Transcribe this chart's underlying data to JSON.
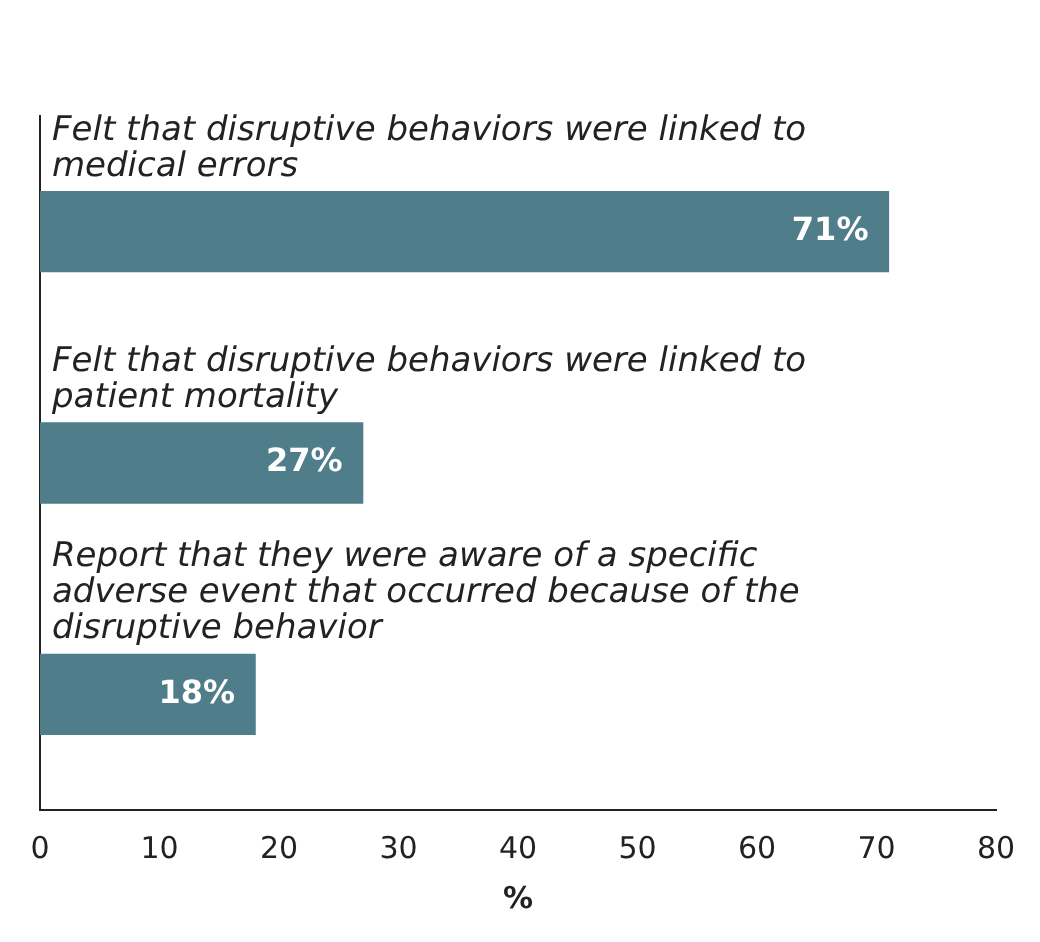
{
  "chart_data": {
    "type": "bar",
    "orientation": "horizontal",
    "categories": [
      "Felt that disruptive behaviors were linked to medical errors",
      "Felt that disruptive behaviors were linked to patient mortality",
      "Report that they were aware of a specific adverse event that occurred because of the disruptive behavior"
    ],
    "values": [
      71,
      27,
      18
    ],
    "color": "#4f7d8a",
    "value_labels": [
      "71%",
      "27%",
      "18%"
    ],
    "xlim": [
      0,
      80
    ],
    "xticks": [
      0,
      10,
      20,
      30,
      40,
      50,
      60,
      70,
      80
    ],
    "xlabel": "%",
    "grid": false
  }
}
